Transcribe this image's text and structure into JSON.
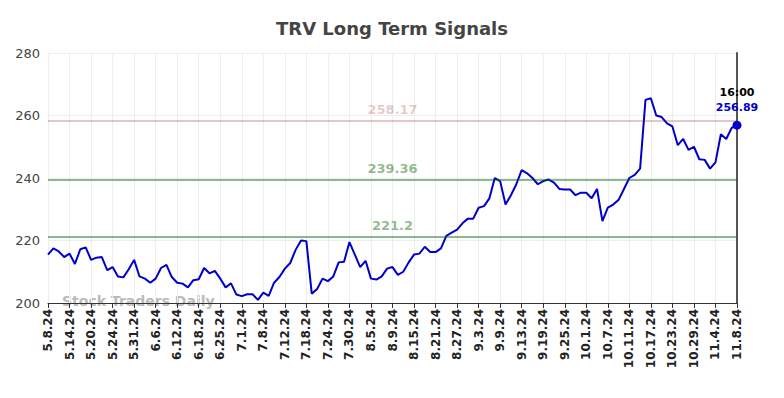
{
  "chart_data": {
    "type": "line",
    "title": "TRV Long Term Signals",
    "categories": [
      "5.8.24",
      null,
      null,
      null,
      "5.14.24",
      null,
      null,
      null,
      "5.20.24",
      null,
      null,
      null,
      "5.24.24",
      null,
      null,
      null,
      "5.31.24",
      null,
      null,
      null,
      "6.6.24",
      null,
      null,
      null,
      "6.12.24",
      null,
      null,
      null,
      "6.18.24",
      null,
      null,
      null,
      "6.25.24",
      null,
      null,
      null,
      "7.1.24",
      null,
      null,
      null,
      "7.8.24",
      null,
      null,
      null,
      "7.12.24",
      null,
      null,
      null,
      "7.18.24",
      null,
      null,
      null,
      "7.24.24",
      null,
      null,
      null,
      "7.30.24",
      null,
      null,
      null,
      "8.5.24",
      null,
      null,
      null,
      "8.9.24",
      null,
      null,
      null,
      "8.15.24",
      null,
      null,
      null,
      "8.21.24",
      null,
      null,
      null,
      "8.27.24",
      null,
      null,
      null,
      "9.3.24",
      null,
      null,
      null,
      "9.9.24",
      null,
      null,
      null,
      "9.13.24",
      null,
      null,
      null,
      "9.19.24",
      null,
      null,
      null,
      "9.25.24",
      null,
      null,
      null,
      "10.1.24",
      null,
      null,
      null,
      "10.7.24",
      null,
      null,
      null,
      "10.11.24",
      null,
      null,
      null,
      "10.17.24",
      null,
      null,
      null,
      "10.23.24",
      null,
      null,
      null,
      "10.29.24",
      null,
      null,
      null,
      "11.4.24",
      null,
      null,
      null,
      "11.8.24"
    ],
    "values": [
      215.5,
      217.5,
      216.5,
      214.7,
      215.8,
      212.5,
      217.2,
      217.8,
      213.8,
      214.5,
      214.7,
      210.5,
      211.5,
      208.5,
      208.2,
      210.8,
      213.8,
      208.5,
      207.8,
      206.5,
      207.8,
      211.2,
      212.2,
      208.3,
      206.5,
      206.2,
      205.0,
      207.3,
      207.6,
      211.2,
      209.5,
      210.3,
      207.8,
      205.0,
      206.3,
      202.7,
      202.2,
      202.8,
      202.8,
      201.0,
      203.3,
      202.3,
      206.5,
      208.3,
      211.0,
      212.8,
      217.0,
      220.0,
      219.8,
      203.0,
      204.5,
      207.8,
      207.0,
      208.5,
      213.0,
      213.2,
      219.5,
      215.5,
      211.5,
      213.5,
      207.8,
      207.5,
      208.5,
      211.0,
      211.5,
      209.0,
      210.0,
      213.0,
      215.5,
      215.8,
      218.0,
      216.3,
      216.3,
      217.5,
      221.5,
      222.5,
      223.5,
      225.5,
      227.0,
      227.0,
      230.5,
      231.0,
      233.5,
      240.0,
      239.0,
      231.5,
      234.5,
      238.0,
      242.5,
      241.5,
      240.0,
      238.0,
      239.0,
      239.5,
      238.5,
      236.5,
      236.3,
      236.3,
      234.5,
      235.3,
      235.3,
      233.5,
      236.5,
      226.2,
      230.5,
      231.5,
      233.0,
      236.5,
      240.0,
      241.0,
      243.0,
      265.0,
      265.5,
      260.0,
      259.5,
      257.5,
      256.5,
      250.5,
      252.5,
      249.0,
      250.0,
      246.0,
      245.8,
      243.0,
      245.0,
      254.0,
      252.5,
      256.0,
      256.89
    ],
    "color": "#0000cc",
    "ylim": [
      200,
      280
    ],
    "yticks": [
      200,
      220,
      240,
      260,
      280
    ],
    "grid": true,
    "levels": [
      {
        "value": 258.17,
        "color": "#8b0000"
      },
      {
        "value": 239.36,
        "color": "#006400"
      },
      {
        "value": 221.2,
        "color": "#006400"
      }
    ],
    "time_label": "16:00",
    "watermark": "Stock Traders Daily"
  }
}
